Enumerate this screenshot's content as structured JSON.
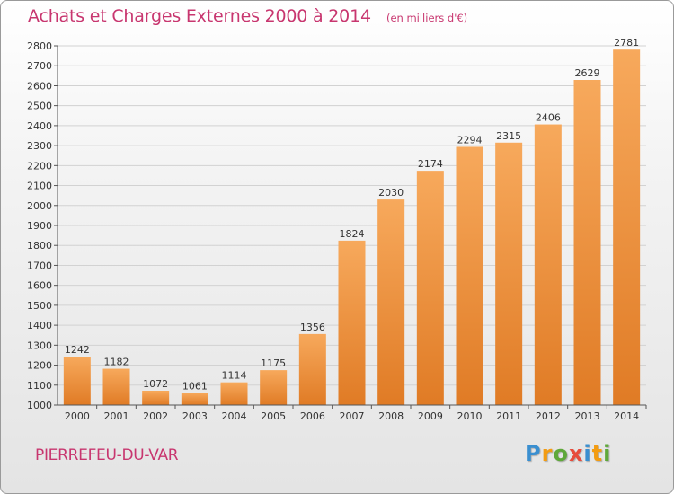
{
  "header": {
    "title": "Achats et Charges Externes 2000 à 2014",
    "subtitle": "(en milliers d'€)"
  },
  "footer": {
    "commune": "PIERREFEU-DU-VAR",
    "logo_text": "Proxiti",
    "logo_colors": [
      "#3a8fd0",
      "#f39c12",
      "#5fa83a",
      "#e74c3c",
      "#3a8fd0",
      "#f39c12",
      "#5fa83a"
    ]
  },
  "colors": {
    "title": "#c8366f",
    "bar_light": "#f7a95c",
    "bar_dark": "#e07b25"
  },
  "chart_data": {
    "type": "bar",
    "title": "Achats et Charges Externes 2000 à 2014",
    "subtitle": "(en milliers d'€)",
    "categories": [
      "2000",
      "2001",
      "2002",
      "2003",
      "2004",
      "2005",
      "2006",
      "2007",
      "2008",
      "2009",
      "2010",
      "2011",
      "2012",
      "2013",
      "2014"
    ],
    "values": [
      1242,
      1182,
      1072,
      1061,
      1114,
      1175,
      1356,
      1824,
      2030,
      2174,
      2294,
      2315,
      2406,
      2629,
      2781
    ],
    "ylim": [
      1000,
      2800
    ],
    "yticks": [
      1000,
      1100,
      1200,
      1300,
      1400,
      1500,
      1600,
      1700,
      1800,
      1900,
      2000,
      2100,
      2200,
      2300,
      2400,
      2500,
      2600,
      2700,
      2800
    ],
    "grid": true,
    "data_labels": true,
    "xlabel": "",
    "ylabel": ""
  }
}
